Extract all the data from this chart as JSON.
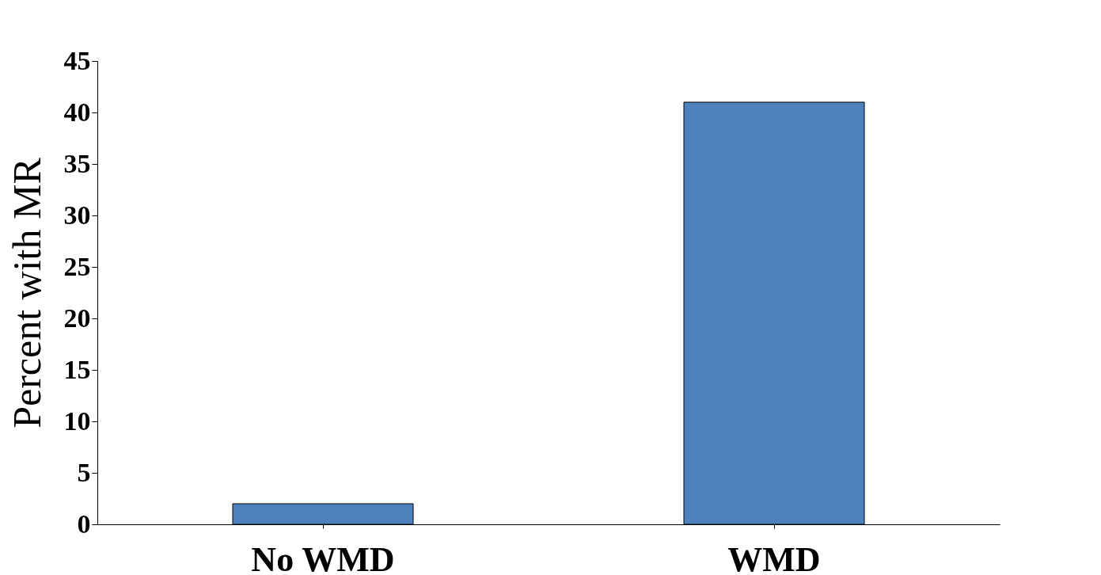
{
  "chart_data": {
    "type": "bar",
    "ylabel": "Percent with MR",
    "categories": [
      "No WMD",
      "WMD"
    ],
    "values": [
      2,
      41
    ],
    "color": "#4f81bd",
    "ylim": [
      0,
      45
    ],
    "yticks": [
      0,
      5,
      10,
      15,
      20,
      25,
      30,
      35,
      40,
      45
    ],
    "grid": false
  }
}
